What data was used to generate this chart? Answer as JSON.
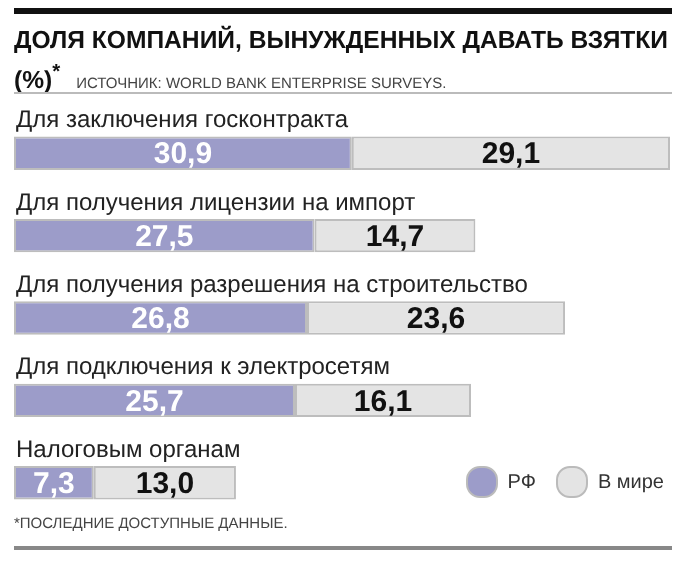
{
  "chart_data": {
    "type": "bar",
    "orientation": "horizontal",
    "stacked": true,
    "title": "ДОЛЯ КОМПАНИЙ, ВЫНУЖДЕННЫХ ДАВАТЬ ВЗЯТКИ (%)$^{*}$",
    "subtitle": "ИСТОЧНИК: WORLD BANK ENTERPRISE SURVEYS.",
    "annotations": [
      "*ПОСЛЕДНИЕ ДОСТУПНЫЕ ДАННЫЕ."
    ],
    "categories": [
      "Для заключения госконтракта",
      "Для получения лицензии на импорт",
      "Для получения разрешения на строительство",
      "Для подключения к электросетям",
      "Налоговым органам"
    ],
    "series": [
      {
        "name": "РФ",
        "color": "#9c9cc9",
        "values": [
          30.9,
          27.5,
          26.8,
          25.7,
          7.3
        ],
        "value_labels": [
          "30,9",
          "27,5",
          "26,8",
          "25,7",
          "7,3"
        ]
      },
      {
        "name": "В мире",
        "color": "#e4e4e4",
        "values": [
          29.1,
          14.7,
          23.6,
          16.1,
          13.0
        ],
        "value_labels": [
          "29,1",
          "14,7",
          "23,6",
          "16,1",
          "13,0"
        ]
      }
    ],
    "legend": "bottom right"
  }
}
